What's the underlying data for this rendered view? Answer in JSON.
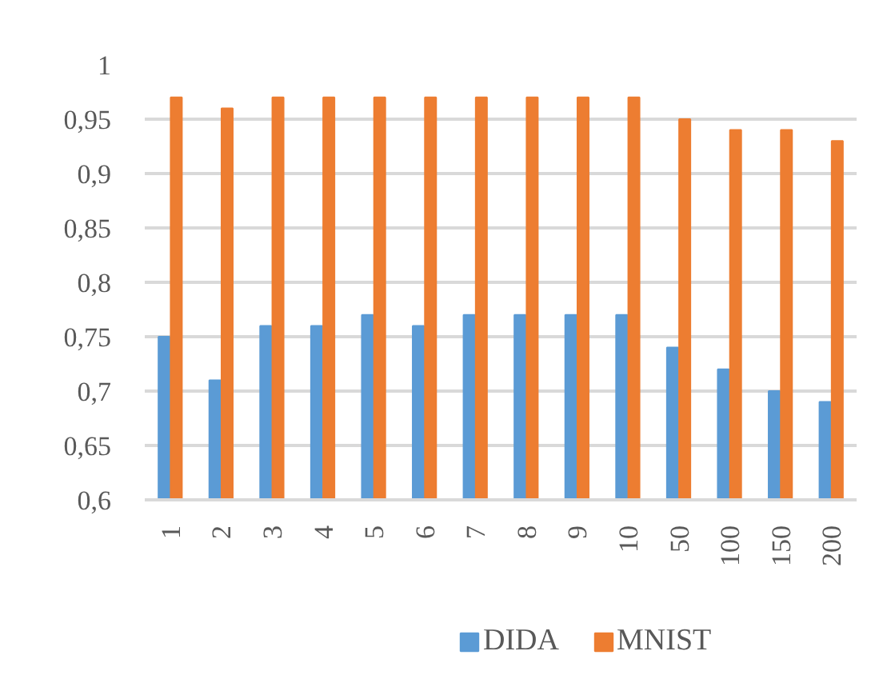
{
  "chart_data": {
    "type": "bar",
    "categories": [
      "1",
      "2",
      "3",
      "4",
      "5",
      "6",
      "7",
      "8",
      "9",
      "10",
      "50",
      "100",
      "150",
      "200"
    ],
    "series": [
      {
        "name": "DIDA",
        "color": "#5b9bd5",
        "values": [
          0.75,
          0.71,
          0.76,
          0.76,
          0.77,
          0.76,
          0.77,
          0.77,
          0.77,
          0.77,
          0.74,
          0.72,
          0.7,
          0.69
        ]
      },
      {
        "name": "MNIST",
        "color": "#ed7d31",
        "values": [
          0.97,
          0.96,
          0.97,
          0.97,
          0.97,
          0.97,
          0.97,
          0.97,
          0.97,
          0.97,
          0.95,
          0.94,
          0.94,
          0.93
        ]
      }
    ],
    "ylim": [
      0.6,
      1
    ],
    "yticks": [
      {
        "value": 0.6,
        "label": "0,6"
      },
      {
        "value": 0.65,
        "label": "0,65"
      },
      {
        "value": 0.7,
        "label": "0,7"
      },
      {
        "value": 0.75,
        "label": "0,75"
      },
      {
        "value": 0.8,
        "label": "0,8"
      },
      {
        "value": 0.85,
        "label": "0,85"
      },
      {
        "value": 0.9,
        "label": "0,9"
      },
      {
        "value": 0.95,
        "label": "0,95"
      },
      {
        "value": 1,
        "label": "1"
      }
    ],
    "grid": "y",
    "legend": "bottom"
  }
}
